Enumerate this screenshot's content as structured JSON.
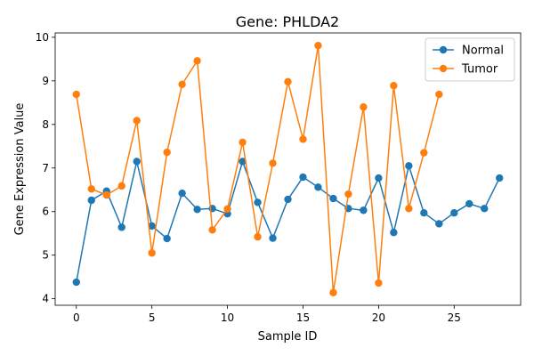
{
  "chart_data": {
    "type": "line",
    "title": "Gene: PHLDA2",
    "xlabel": "Sample ID",
    "ylabel": "Gene Expression Value",
    "xlim": [
      -1.4,
      29.4
    ],
    "ylim": [
      3.85,
      10.1
    ],
    "xticks": [
      0,
      5,
      10,
      15,
      20,
      25
    ],
    "yticks": [
      4,
      5,
      6,
      7,
      8,
      9,
      10
    ],
    "grid": false,
    "legend": "top-right",
    "series": [
      {
        "name": "Normal",
        "color": "#1f77b4",
        "x": [
          0,
          1,
          2,
          3,
          4,
          5,
          6,
          7,
          8,
          9,
          10,
          11,
          12,
          13,
          14,
          15,
          16,
          17,
          18,
          19,
          20,
          21,
          22,
          23,
          24,
          25,
          26,
          27,
          28
        ],
        "y": [
          4.38,
          6.26,
          6.47,
          5.64,
          7.15,
          5.67,
          5.38,
          6.42,
          6.05,
          6.07,
          5.95,
          7.15,
          6.21,
          5.39,
          6.28,
          6.79,
          6.56,
          6.3,
          6.07,
          6.03,
          6.77,
          5.52,
          7.05,
          5.97,
          5.72,
          5.97,
          6.18,
          6.07,
          6.77
        ]
      },
      {
        "name": "Tumor",
        "color": "#ff7f0e",
        "x": [
          0,
          1,
          2,
          3,
          4,
          5,
          6,
          7,
          8,
          9,
          10,
          11,
          12,
          13,
          14,
          15,
          16,
          17,
          18,
          19,
          20,
          21,
          22,
          23,
          24
        ],
        "y": [
          8.69,
          6.52,
          6.38,
          6.59,
          8.09,
          5.05,
          7.36,
          8.92,
          9.46,
          5.58,
          6.06,
          7.59,
          5.42,
          7.11,
          8.98,
          7.66,
          9.81,
          4.14,
          6.4,
          8.4,
          4.36,
          8.89,
          6.07,
          7.35,
          8.69
        ]
      }
    ]
  }
}
